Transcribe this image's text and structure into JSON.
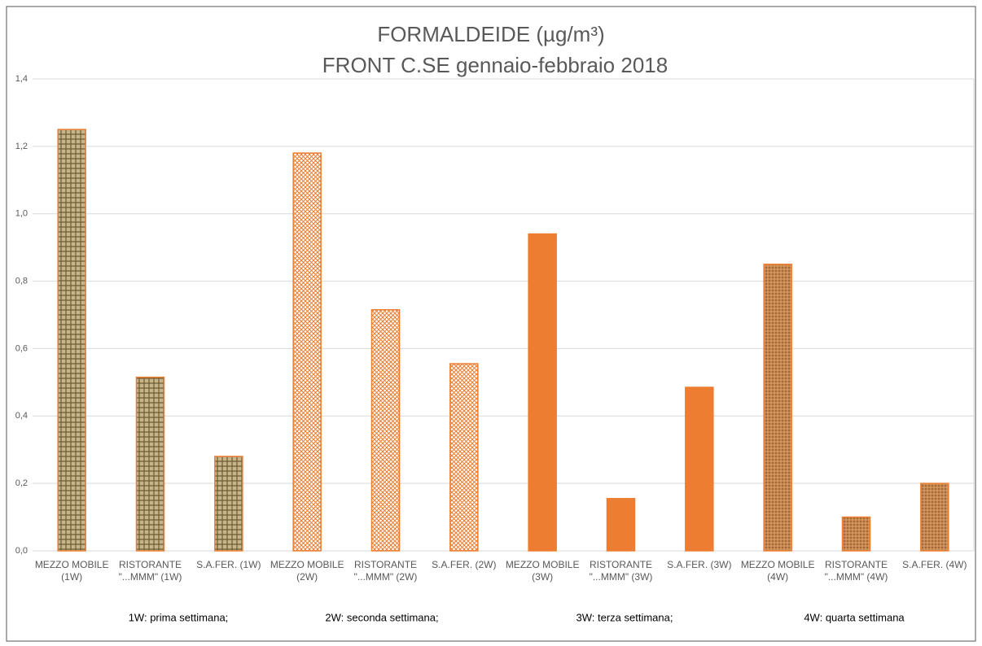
{
  "chart_data": {
    "type": "bar",
    "title": "FORMALDEIDE (µg/m³)",
    "subtitle": "FRONT C.SE gennaio-febbraio 2018",
    "categories": [
      "MEZZO MOBILE (1W)",
      "RISTORANTE \"...MMM\" (1W)",
      "S.A.FER. (1W)",
      "MEZZO MOBILE (2W)",
      "RISTORANTE \"...MMM\" (2W)",
      "S.A.FER. (2W)",
      "MEZZO MOBILE (3W)",
      "RISTORANTE \"...MMM\" (3W)",
      "S.A.FER. (3W)",
      "MEZZO MOBILE (4W)",
      "RISTORANTE \"...MMM\" (4W)",
      "S.A.FER. (4W)"
    ],
    "values": [
      1.25,
      0.515,
      0.28,
      1.18,
      0.715,
      0.555,
      0.94,
      0.155,
      0.485,
      0.85,
      0.1,
      0.2
    ],
    "color": "#ed7d31",
    "ylim": [
      0,
      1.4
    ],
    "yticks": [
      {
        "value": 0,
        "label": "0,0"
      },
      {
        "value": 0.2,
        "label": "0,2"
      },
      {
        "value": 0.4,
        "label": "0,4"
      },
      {
        "value": 0.6,
        "label": "0,6"
      },
      {
        "value": 0.8,
        "label": "0,8"
      },
      {
        "value": 1,
        "label": "1,0"
      },
      {
        "value": 1.2,
        "label": "1,2"
      },
      {
        "value": 1.4,
        "label": "1,4"
      }
    ],
    "grid": true,
    "notes": [
      "1W: prima settimana;",
      "2W: seconda settimana;",
      "3W: terza settimana;",
      "4W: quarta settimana"
    ]
  }
}
